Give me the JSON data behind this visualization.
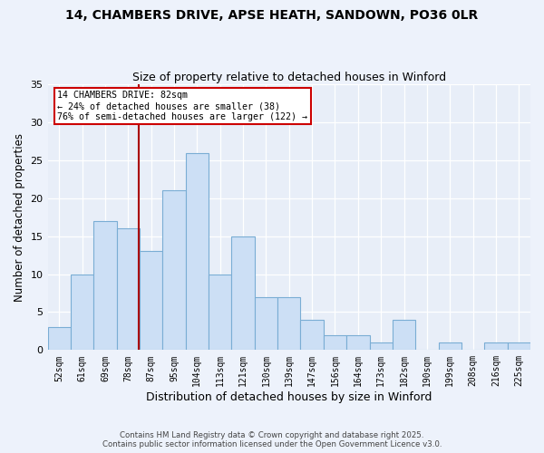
{
  "title1": "14, CHAMBERS DRIVE, APSE HEATH, SANDOWN, PO36 0LR",
  "title2": "Size of property relative to detached houses in Winford",
  "xlabel": "Distribution of detached houses by size in Winford",
  "ylabel": "Number of detached properties",
  "categories": [
    "52sqm",
    "61sqm",
    "69sqm",
    "78sqm",
    "87sqm",
    "95sqm",
    "104sqm",
    "113sqm",
    "121sqm",
    "130sqm",
    "139sqm",
    "147sqm",
    "156sqm",
    "164sqm",
    "173sqm",
    "182sqm",
    "190sqm",
    "199sqm",
    "208sqm",
    "216sqm",
    "225sqm"
  ],
  "values": [
    3,
    10,
    17,
    16,
    13,
    21,
    26,
    10,
    15,
    7,
    7,
    4,
    2,
    2,
    1,
    4,
    0,
    1,
    0,
    1,
    1
  ],
  "bar_color": "#ccdff5",
  "bar_edgecolor": "#7aadd4",
  "annotation_line1": "14 CHAMBERS DRIVE: 82sqm",
  "annotation_line2": "← 24% of detached houses are smaller (38)",
  "annotation_line3": "76% of semi-detached houses are larger (122) →",
  "annotation_box_facecolor": "#ffffff",
  "annotation_box_edgecolor": "#cc0000",
  "ref_line_color": "#aa0000",
  "ylim": [
    0,
    35
  ],
  "yticks": [
    0,
    5,
    10,
    15,
    20,
    25,
    30,
    35
  ],
  "bg_color": "#e8eef8",
  "fig_bg_color": "#edf2fb",
  "footer1": "Contains HM Land Registry data © Crown copyright and database right 2025.",
  "footer2": "Contains public sector information licensed under the Open Government Licence v3.0."
}
